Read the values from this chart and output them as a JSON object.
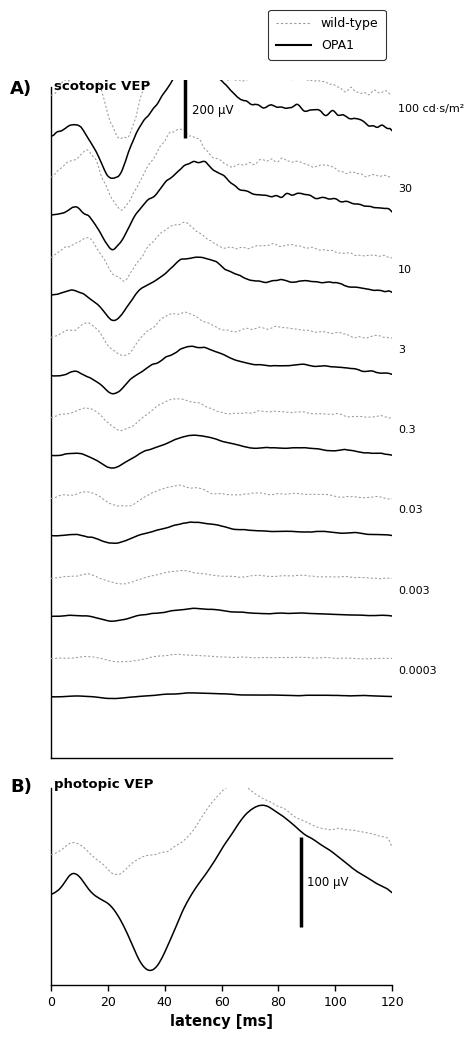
{
  "title_A": "scotopic VEP",
  "title_B": "photopic VEP",
  "xlabel": "latency [ms]",
  "xlim": [
    0,
    120
  ],
  "xticks": [
    0,
    20,
    40,
    60,
    80,
    100,
    120
  ],
  "legend_labels": [
    "wild-type",
    "OPA1"
  ],
  "scotopic_labels": [
    "100 cd·s/m²",
    "30",
    "10",
    "3",
    "0.3",
    "0.03",
    "0.003",
    "0.0003"
  ],
  "scale_bar_A_label": "200 μV",
  "scale_bar_B_label": "100 μV",
  "wt_color": "#999999",
  "opa1_color": "#000000",
  "bg_color": "#ffffff"
}
